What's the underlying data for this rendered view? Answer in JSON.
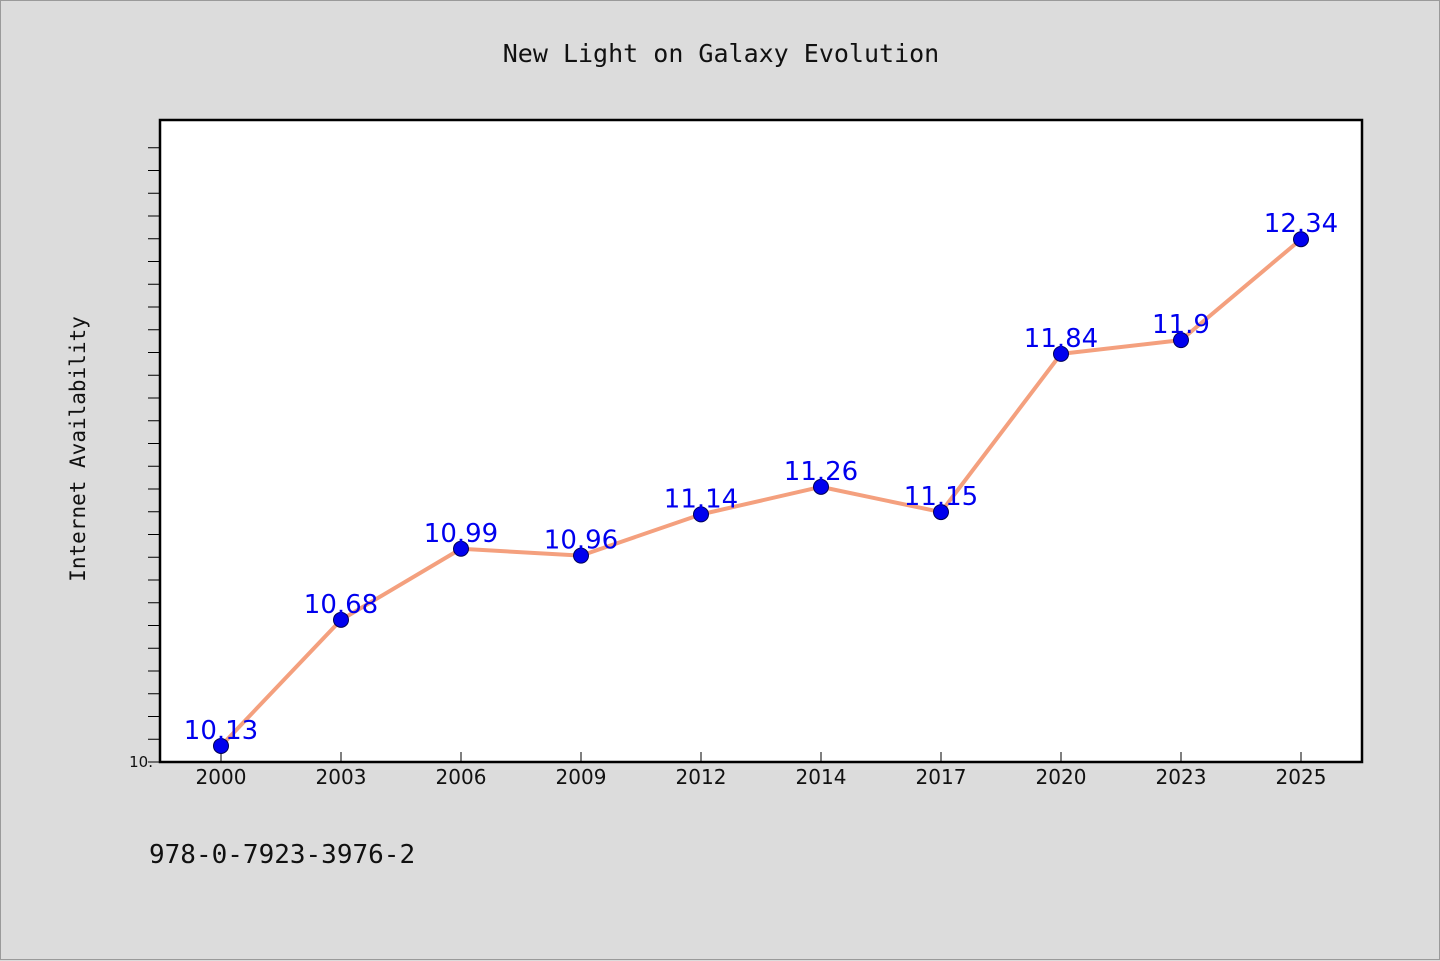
{
  "chart_data": {
    "type": "line",
    "title": "New Light on Galaxy Evolution",
    "xlabel": "",
    "ylabel": "Internet Availability",
    "categories": [
      "2000",
      "2003",
      "2006",
      "2009",
      "2012",
      "2014",
      "2017",
      "2020",
      "2023",
      "2025"
    ],
    "series": [
      {
        "values": [
          10.13,
          10.68,
          10.99,
          10.96,
          11.14,
          11.26,
          11.15,
          11.84,
          11.9,
          12.34
        ],
        "labels": [
          "10.13",
          "10.68",
          "10.99",
          "10.96",
          "11.14",
          "11.26",
          "11.15",
          "11.84",
          "11.9",
          "12.34"
        ],
        "line_color": "#f4a07e",
        "marker_color": "#0000ee",
        "label_color": "#0000ee"
      }
    ],
    "ylim": [
      10.06,
      12.86
    ],
    "ytick_label": "10.",
    "grid": false,
    "legend": "none"
  },
  "footer": {
    "isbn": "978-0-7923-3976-2"
  },
  "colors": {
    "background": "#dcdcdc",
    "plot_background": "#ffffff"
  }
}
